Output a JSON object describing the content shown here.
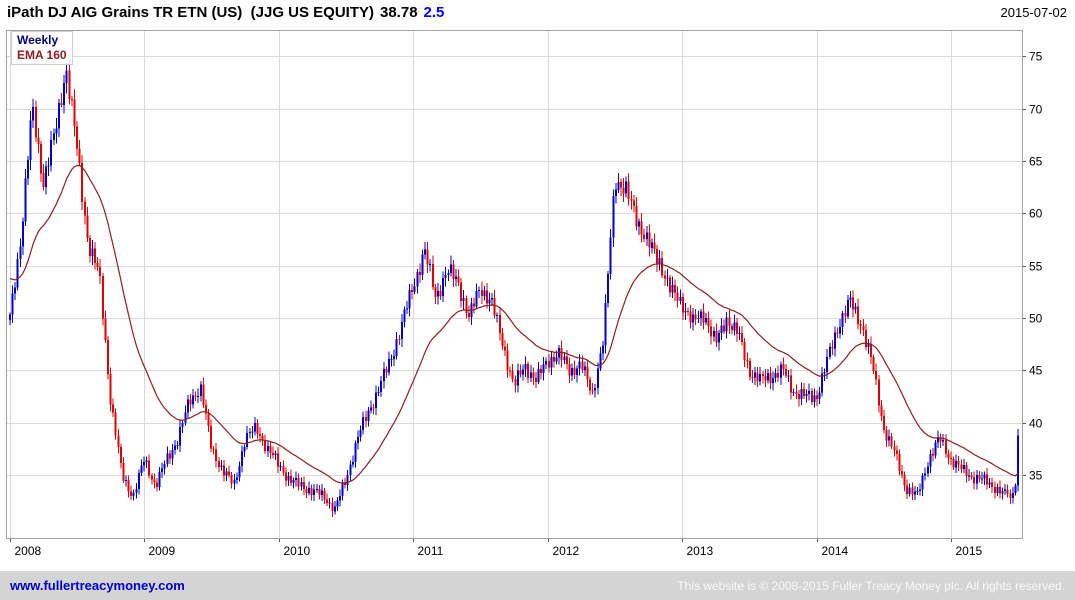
{
  "header": {
    "title_main": "iPath DJ AIG Grains TR ETN (US)  (JJG US EQUITY)",
    "last_price": "38.78",
    "change": "2.5",
    "date": "2015-07-02"
  },
  "legend": {
    "timeframe": "Weekly",
    "ema_label": "EMA 160"
  },
  "footer": {
    "site_link": "www.fullertreacymoney.com",
    "copyright": "This website is © 2008-2015 Fuller Treacy Money plc. All rights reserved."
  },
  "chart_data": {
    "type": "candlestick",
    "title": "iPath DJ AIG Grains TR ETN (US) (JJG US EQUITY)",
    "timeframe": "weekly",
    "last": {
      "date": "2015-07-02",
      "close": 38.78,
      "change": 2.5
    },
    "ema": {
      "label": "EMA 160",
      "period_days": 160,
      "start_value": 54
    },
    "x_ticks": [
      2008,
      2009,
      2010,
      2011,
      2012,
      2013,
      2014,
      2015
    ],
    "y_ticks": [
      35,
      40,
      45,
      50,
      55,
      60,
      65,
      70,
      75
    ],
    "ylim": [
      29,
      77.5
    ],
    "grid": true,
    "legend_position": "top-left",
    "anchors_monthly": {
      "start": "2008-01",
      "end": "2015-07",
      "closes": [
        50.0,
        58.0,
        70.0,
        63.0,
        67.5,
        74.0,
        66.0,
        57.0,
        54.0,
        42.0,
        35.0,
        33.0,
        36.5,
        34.0,
        36.5,
        38.5,
        42.0,
        43.5,
        37.5,
        35.5,
        34.0,
        38.5,
        39.5,
        37.5,
        36.0,
        34.5,
        34.0,
        33.5,
        33.0,
        31.8,
        34.5,
        38.5,
        41.0,
        43.5,
        46.0,
        49.5,
        53.0,
        56.5,
        52.0,
        54.5,
        53.5,
        50.0,
        53.0,
        51.5,
        47.5,
        43.5,
        45.5,
        44.0,
        46.0,
        46.5,
        45.0,
        45.5,
        42.8,
        48.0,
        63.5,
        62.0,
        59.5,
        57.0,
        55.5,
        52.5,
        51.5,
        49.5,
        50.5,
        47.5,
        50.0,
        48.5,
        45.0,
        44.0,
        44.5,
        45.0,
        43.0,
        42.5,
        42.5,
        46.0,
        49.5,
        51.5,
        49.5,
        45.5,
        39.5,
        37.0,
        33.8,
        33.0,
        36.5,
        38.5,
        36.5,
        35.5,
        34.8,
        34.5,
        33.8,
        33.0,
        38.78
      ]
    },
    "last_weeks_closes": [
      32.8,
      33.3,
      34.0,
      38.78
    ],
    "colors": {
      "up": "#0000c8",
      "down": "#e00000",
      "ema": "#8b2020",
      "grid": "#d9d9d9",
      "border": "#a0a0a0",
      "weekly_label": "#000080",
      "change_text": "#0000ff",
      "link": "#0000cc"
    }
  }
}
